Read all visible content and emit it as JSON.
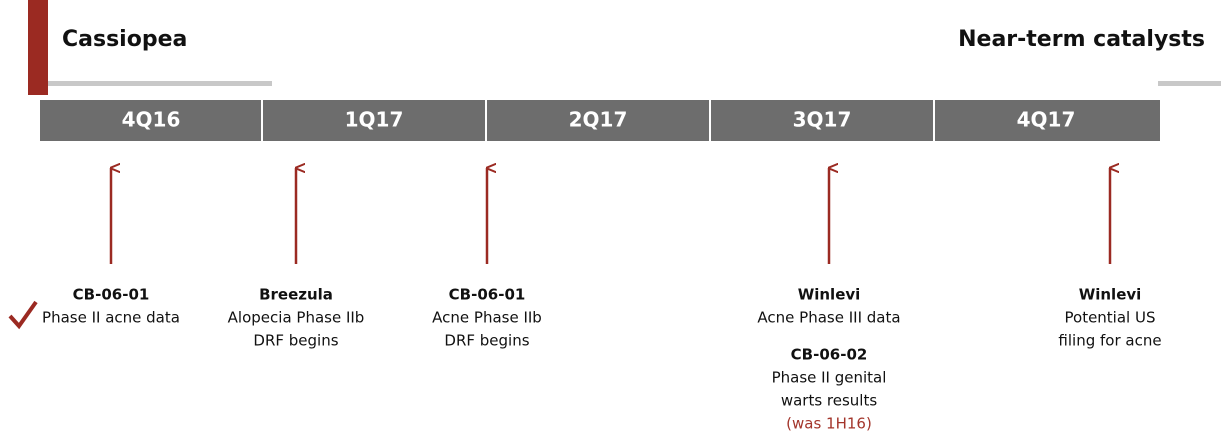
{
  "header": {
    "title": "Cassiopea",
    "subtitle": "Near-term catalysts"
  },
  "timeline": [
    "4Q16",
    "1Q17",
    "2Q17",
    "3Q17",
    "4Q17"
  ],
  "events": [
    {
      "name": "CB-06-01",
      "lines": [
        "Phase II acne data"
      ]
    },
    {
      "name": "Breezula",
      "lines": [
        "Alopecia Phase IIb",
        "DRF begins"
      ]
    },
    {
      "name": "CB-06-01",
      "lines": [
        "Acne Phase IIb",
        "DRF begins"
      ]
    },
    {
      "name": "Winlevi",
      "lines": [
        "Acne Phase III data"
      ]
    },
    {
      "name": "CB-06-02",
      "lines": [
        "Phase II genital",
        "warts results"
      ],
      "note": "(was 1H16)"
    },
    {
      "name": "Winlevi",
      "lines": [
        "Potential US",
        "filing for acne"
      ]
    }
  ]
}
